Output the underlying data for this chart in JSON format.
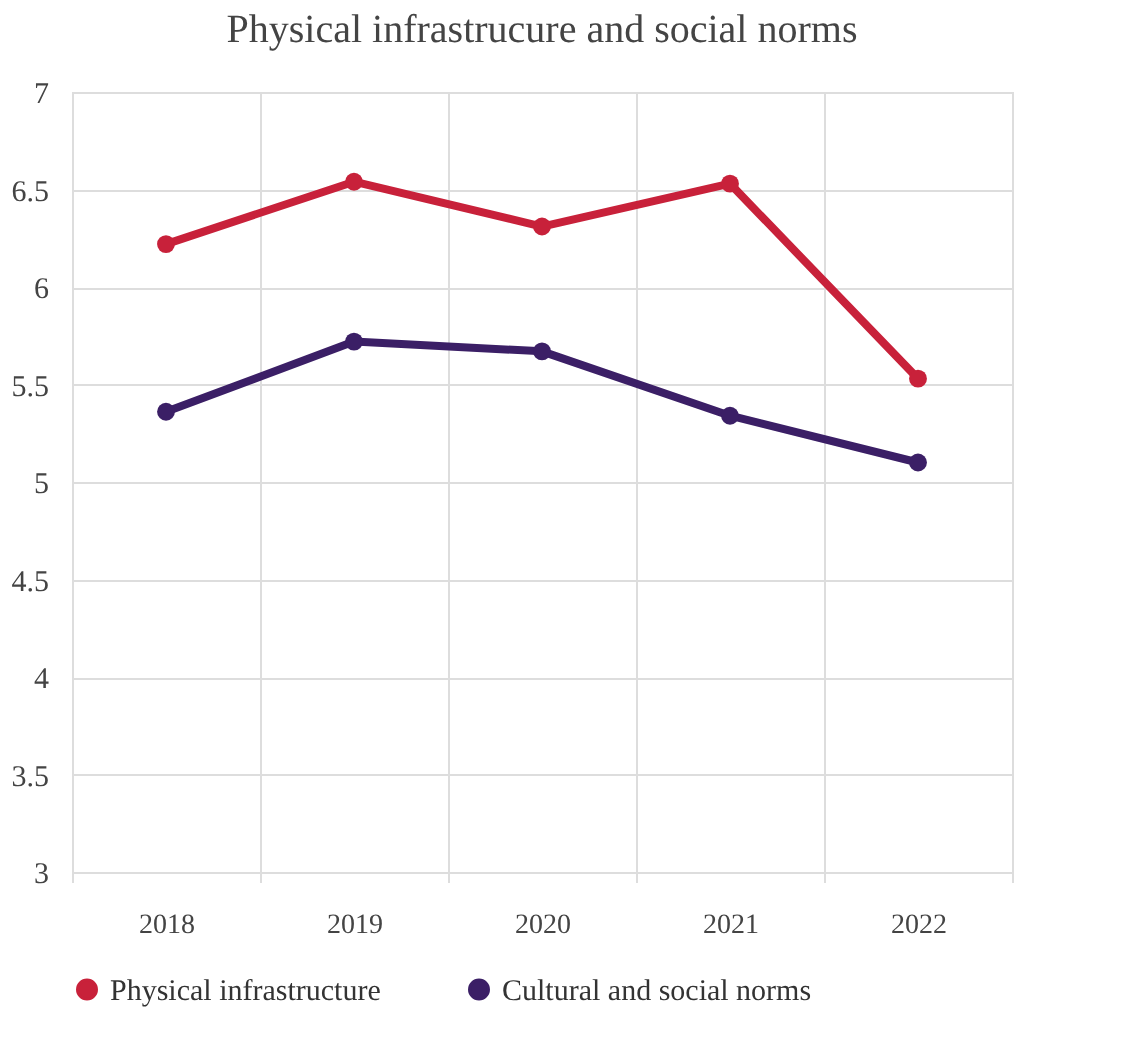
{
  "chart_data": {
    "type": "line",
    "title": "Physical infrastrucure and social norms",
    "categories": [
      "2018",
      "2019",
      "2020",
      "2021",
      "2022"
    ],
    "series": [
      {
        "name": "Physical infrastructure",
        "color": "#c8213a",
        "values": [
          6.22,
          6.54,
          6.31,
          6.53,
          5.53
        ]
      },
      {
        "name": "Cultural and social norms",
        "color": "#3b1f66",
        "values": [
          5.36,
          5.72,
          5.67,
          5.34,
          5.1
        ]
      }
    ],
    "ylim": [
      3,
      7
    ],
    "yticks": [
      3,
      3.5,
      4,
      4.5,
      5,
      5.5,
      6,
      6.5,
      7
    ],
    "grid": true,
    "legend": "bottom",
    "marker": "circle",
    "line_style": "solid"
  }
}
